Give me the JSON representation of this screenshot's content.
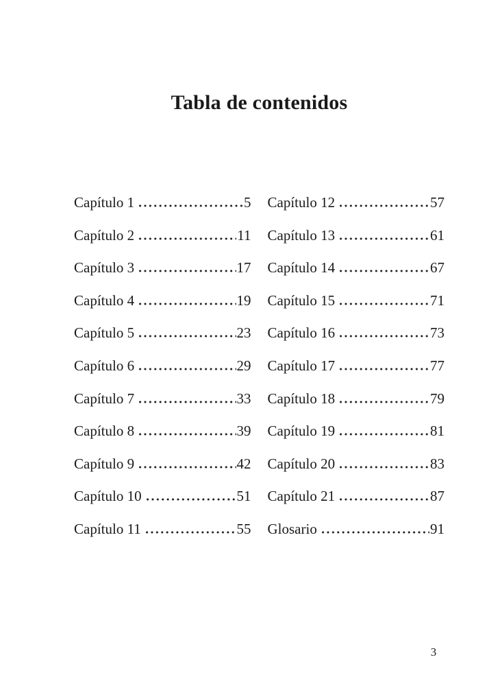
{
  "title": "Tabla de contenidos",
  "page_number": "3",
  "toc": {
    "columns": [
      {
        "entries": [
          {
            "label": "Capítulo 1",
            "page": "5"
          },
          {
            "label": "Capítulo 2",
            "page": "11"
          },
          {
            "label": "Capítulo 3",
            "page": "17"
          },
          {
            "label": "Capítulo 4",
            "page": "19"
          },
          {
            "label": "Capítulo 5",
            "page": "23"
          },
          {
            "label": "Capítulo 6",
            "page": "29"
          },
          {
            "label": "Capítulo 7",
            "page": "33"
          },
          {
            "label": "Capítulo 8",
            "page": "39"
          },
          {
            "label": "Capítulo 9",
            "page": "42"
          },
          {
            "label": "Capítulo 10",
            "page": "51"
          },
          {
            "label": "Capítulo 11",
            "page": "55"
          }
        ]
      },
      {
        "entries": [
          {
            "label": "Capítulo 12",
            "page": "57"
          },
          {
            "label": "Capítulo 13",
            "page": "61"
          },
          {
            "label": "Capítulo 14",
            "page": "67"
          },
          {
            "label": "Capítulo 15",
            "page": "71"
          },
          {
            "label": "Capítulo 16",
            "page": "73"
          },
          {
            "label": "Capítulo 17",
            "page": "77"
          },
          {
            "label": "Capítulo 18",
            "page": "79"
          },
          {
            "label": "Capítulo 19",
            "page": "81"
          },
          {
            "label": "Capítulo 20",
            "page": "83"
          },
          {
            "label": "Capítulo 21",
            "page": "87"
          },
          {
            "label": "Glosario",
            "page": "91"
          }
        ]
      }
    ]
  }
}
